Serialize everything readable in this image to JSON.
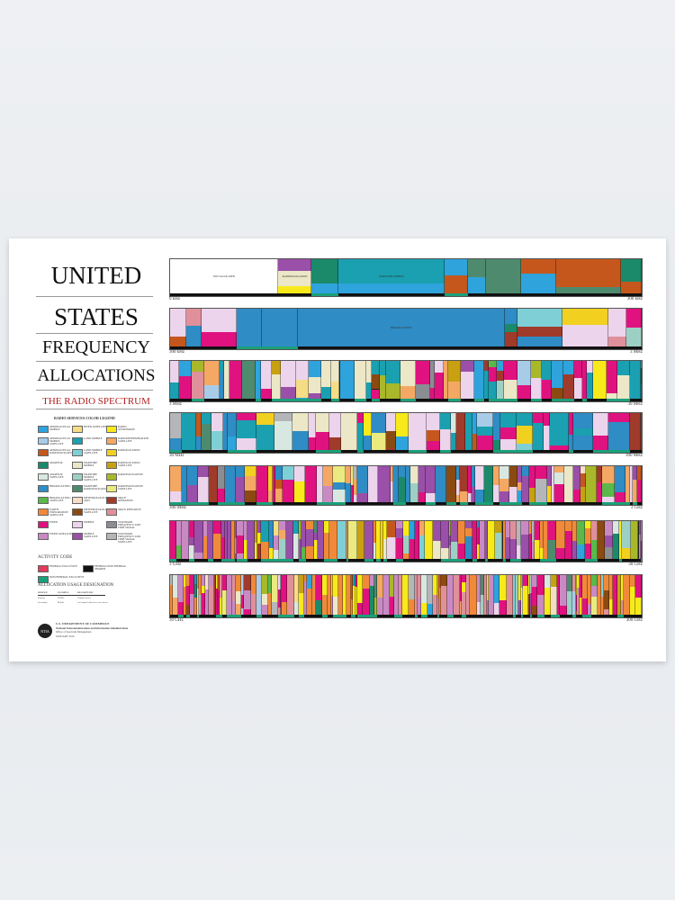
{
  "title": {
    "line1": "UNITED",
    "line2": "STATES",
    "line3": "FREQUENCY",
    "line4": "ALLOCATIONS",
    "subtitle": "THE RADIO SPECTRUM"
  },
  "legend": {
    "heading": "RADIO SERVICES COLOR LEGEND",
    "items": [
      {
        "label": "AERONAUTICAL MOBILE",
        "color": "#2ea3dc"
      },
      {
        "label": "AERONAUTICAL MOBILE SATELLITE",
        "color": "#a8cbe8"
      },
      {
        "label": "AERONAUTICAL RADIONAVIGATION",
        "color": "#c5571d"
      },
      {
        "label": "AMATEUR",
        "color": "#1a8a6a"
      },
      {
        "label": "AMATEUR SATELLITE",
        "color": "#d8e8e0"
      },
      {
        "label": "BROADCASTING",
        "color": "#2f8cc4"
      },
      {
        "label": "BROADCASTING SATELLITE",
        "color": "#5bb84a"
      },
      {
        "label": "EARTH EXPLORATION SATELLITE",
        "color": "#f08a3a"
      },
      {
        "label": "FIXED",
        "color": "#e0127f"
      },
      {
        "label": "FIXED SATELLITE",
        "color": "#c98ac4"
      },
      {
        "label": "INTER-SATELLITE",
        "color": "#f5dc86"
      },
      {
        "label": "LAND MOBILE",
        "color": "#1aa0b0"
      },
      {
        "label": "LAND MOBILE SATELLITE",
        "color": "#7fcfd6"
      },
      {
        "label": "MARITIME MOBILE",
        "color": "#ece7c7"
      },
      {
        "label": "MARITIME MOBILE SATELLITE",
        "color": "#9dd0c4"
      },
      {
        "label": "MARITIME RADIONAVIGATION",
        "color": "#4e8b6e"
      },
      {
        "label": "METEOROLOGICAL AIDS",
        "color": "#f5ddc8"
      },
      {
        "label": "METEOROLOGICAL SATELLITE",
        "color": "#8a4a12"
      },
      {
        "label": "MOBILE",
        "color": "#ecd4ec"
      },
      {
        "label": "MOBILE SATELLITE",
        "color": "#9a4fa8"
      },
      {
        "label": "RADIO ASTRONOMY",
        "color": "#f8ea1a"
      },
      {
        "label": "RADIODETERMINATION SATELLITE",
        "color": "#f4a864"
      },
      {
        "label": "RADIOLOCATION",
        "color": "#f2d020"
      },
      {
        "label": "RADIOLOCATION SATELLITE",
        "color": "#c8a012"
      },
      {
        "label": "RADIONAVIGATION",
        "color": "#a8b82a"
      },
      {
        "label": "RADIONAVIGATION SATELLITE",
        "color": "#eaea80"
      },
      {
        "label": "SPACE OPERATION",
        "color": "#a03a2a"
      },
      {
        "label": "SPACE RESEARCH",
        "color": "#e0909a"
      },
      {
        "label": "STANDARD FREQUENCY AND TIME SIGNAL",
        "color": "#8a8e92"
      },
      {
        "label": "STANDARD FREQUENCY AND TIME SIGNAL SATELLITE",
        "color": "#b4b6ba"
      }
    ]
  },
  "activity": {
    "heading": "ACTIVITY CODE",
    "items": [
      {
        "label": "FEDERAL EXCLUSIVE",
        "color": "#e23a5a"
      },
      {
        "label": "FEDERAL/NON-FEDERAL SHARED",
        "color": "#111111"
      },
      {
        "label": "NON-FEDERAL EXCLUSIVE",
        "color": "#1aa07a"
      }
    ]
  },
  "usage": {
    "heading": "ALLOCATION USAGE DESIGNATION",
    "columns": [
      "SERVICE",
      "EXAMPLE",
      "DESCRIPTION"
    ],
    "rows": [
      [
        "Primary",
        "FIXED",
        "Capital Letters"
      ],
      [
        "Secondary",
        "Mobile",
        "1st Capital with lower case letters"
      ]
    ]
  },
  "agency": {
    "dept": "U.S. DEPARTMENT OF COMMERCE",
    "ntia": "National Telecommunications and Information Administration",
    "office": "Office of Spectrum Management",
    "date": "JANUARY 2016",
    "seal": "NTIA"
  },
  "rows": [
    {
      "start": "0 kHz",
      "end": "300 kHz",
      "labels": [
        "NOT ALLOCATED",
        "RADIONAVIGATION",
        "MARITIME MOBILE"
      ]
    },
    {
      "start": "300 kHz",
      "end": "3 MHz",
      "labels": [
        "BROADCASTING"
      ]
    },
    {
      "start": "3 MHz",
      "end": "30 MHz",
      "labels": []
    },
    {
      "start": "30 MHz",
      "end": "300 MHz",
      "labels": []
    },
    {
      "start": "300 MHz",
      "end": "3 GHz",
      "labels": []
    },
    {
      "start": "3 GHz",
      "end": "30 GHz",
      "labels": []
    },
    {
      "start": "30 GHz",
      "end": "300 GHz",
      "labels": []
    }
  ]
}
